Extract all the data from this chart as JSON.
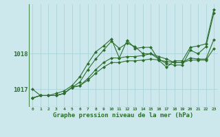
{
  "xlabel": "Graphe pression niveau de la mer (hPa)",
  "background_color": "#cce8ec",
  "grid_color": "#aad4d8",
  "line_color": "#2d6e2d",
  "marker": "D",
  "markersize": 2,
  "linewidth": 0.8,
  "ylim": [
    1016.5,
    1019.4
  ],
  "xlim": [
    -0.5,
    23.5
  ],
  "yticks": [
    1017,
    1018
  ],
  "xticks": [
    0,
    1,
    2,
    3,
    4,
    5,
    6,
    7,
    8,
    9,
    10,
    11,
    12,
    13,
    14,
    15,
    16,
    17,
    18,
    19,
    20,
    21,
    22,
    23
  ],
  "series": [
    [
      1016.75,
      1016.82,
      1016.82,
      1016.82,
      1016.88,
      1017.05,
      1017.2,
      1017.55,
      1017.85,
      1018.1,
      1018.35,
      1018.15,
      1018.3,
      1018.2,
      1018.0,
      1018.0,
      1017.85,
      1017.72,
      1017.68,
      1017.68,
      1018.1,
      1018.0,
      1018.2,
      1019.15
    ],
    [
      1016.75,
      1016.82,
      1016.82,
      1016.82,
      1016.88,
      1017.05,
      1017.1,
      1017.3,
      1017.55,
      1017.75,
      1017.88,
      1017.88,
      1017.92,
      1017.92,
      1017.95,
      1018.0,
      1017.92,
      1017.85,
      1017.75,
      1017.75,
      1017.88,
      1017.85,
      1017.85,
      1018.4
    ],
    [
      1016.75,
      1016.82,
      1016.82,
      1016.82,
      1016.88,
      1017.05,
      1017.1,
      1017.25,
      1017.45,
      1017.62,
      1017.75,
      1017.75,
      1017.8,
      1017.8,
      1017.82,
      1017.85,
      1017.82,
      1017.78,
      1017.75,
      1017.75,
      1017.82,
      1017.82,
      1017.82,
      1018.15
    ],
    [
      1017.0,
      1016.82,
      1016.82,
      1016.88,
      1016.95,
      1017.1,
      1017.35,
      1017.72,
      1018.05,
      1018.22,
      1018.42,
      1017.88,
      1018.38,
      1018.15,
      1018.18,
      1018.18,
      1017.82,
      1017.62,
      1017.8,
      1017.8,
      1018.18,
      1018.22,
      1018.28,
      1019.25
    ]
  ]
}
